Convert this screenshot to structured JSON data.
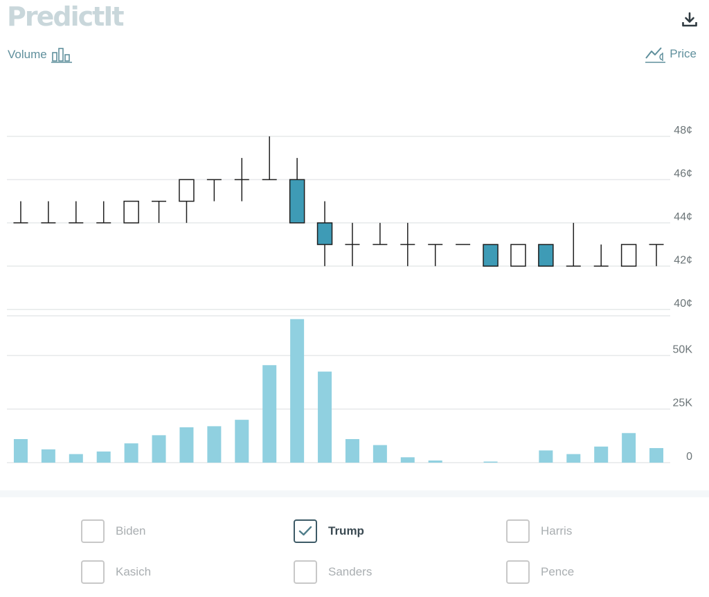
{
  "brand": {
    "logo_text": "PredictIt"
  },
  "toolbar": {
    "volume_label": "Volume",
    "price_label": "Price",
    "download_icon": "download-icon",
    "volume_icon": "bar-chart-icon",
    "price_icon": "line-chart-icon"
  },
  "colors": {
    "accent": "#5f8f9c",
    "candle_down_fill": "#3e9bb6",
    "volume_bar": "#90d0e0",
    "grid": "#e6e9ea"
  },
  "chart_data": [
    {
      "type": "candlestick",
      "title": "",
      "xlabel": "",
      "ylabel": "",
      "y_unit": "¢",
      "ylim": [
        39,
        49.5
      ],
      "y_ticks": [
        40,
        42,
        44,
        46,
        48
      ],
      "y_tick_labels": [
        "40¢",
        "42¢",
        "44¢",
        "46¢",
        "48¢"
      ],
      "grid": true,
      "ohlc": [
        {
          "open": 44,
          "high": 45,
          "low": 44,
          "close": 44
        },
        {
          "open": 44,
          "high": 45,
          "low": 44,
          "close": 44
        },
        {
          "open": 44,
          "high": 45,
          "low": 44,
          "close": 44
        },
        {
          "open": 44,
          "high": 45,
          "low": 44,
          "close": 44
        },
        {
          "open": 44,
          "high": 45,
          "low": 44,
          "close": 45
        },
        {
          "open": 45,
          "high": 45,
          "low": 44,
          "close": 45
        },
        {
          "open": 45,
          "high": 46,
          "low": 44,
          "close": 46
        },
        {
          "open": 46,
          "high": 46,
          "low": 45,
          "close": 46
        },
        {
          "open": 46,
          "high": 47,
          "low": 45,
          "close": 46
        },
        {
          "open": 46,
          "high": 48,
          "low": 46,
          "close": 46
        },
        {
          "open": 46,
          "high": 47,
          "low": 44,
          "close": 44
        },
        {
          "open": 44,
          "high": 45,
          "low": 42,
          "close": 43
        },
        {
          "open": 43,
          "high": 44,
          "low": 42,
          "close": 43
        },
        {
          "open": 43,
          "high": 44,
          "low": 43,
          "close": 43
        },
        {
          "open": 43,
          "high": 44,
          "low": 42,
          "close": 43
        },
        {
          "open": 43,
          "high": 43,
          "low": 42,
          "close": 43
        },
        {
          "open": 43,
          "high": 43,
          "low": 43,
          "close": 43
        },
        {
          "open": 43,
          "high": 43,
          "low": 42,
          "close": 42
        },
        {
          "open": 42,
          "high": 43,
          "low": 42,
          "close": 43
        },
        {
          "open": 43,
          "high": 43,
          "low": 42,
          "close": 42
        },
        {
          "open": 42,
          "high": 44,
          "low": 42,
          "close": 42
        },
        {
          "open": 42,
          "high": 43,
          "low": 42,
          "close": 42
        },
        {
          "open": 42,
          "high": 43,
          "low": 42,
          "close": 43
        },
        {
          "open": 43,
          "high": 43,
          "low": 42,
          "close": 43
        }
      ]
    },
    {
      "type": "bar",
      "title": "",
      "xlabel": "",
      "ylabel": "",
      "ylim": [
        0,
        75000
      ],
      "y_ticks": [
        0,
        25000,
        50000
      ],
      "y_tick_labels": [
        "0",
        "25K",
        "50K"
      ],
      "grid": true,
      "values": [
        11000,
        6200,
        4000,
        5200,
        9000,
        12800,
        16500,
        17000,
        20000,
        45500,
        67000,
        42500,
        11000,
        8200,
        2500,
        1000,
        0,
        500,
        0,
        5700,
        4000,
        7500,
        13800,
        6800
      ]
    }
  ],
  "candidates": [
    {
      "name": "Biden",
      "checked": false
    },
    {
      "name": "Trump",
      "checked": true
    },
    {
      "name": "Harris",
      "checked": false
    },
    {
      "name": "Kasich",
      "checked": false
    },
    {
      "name": "Sanders",
      "checked": false
    },
    {
      "name": "Pence",
      "checked": false
    }
  ]
}
